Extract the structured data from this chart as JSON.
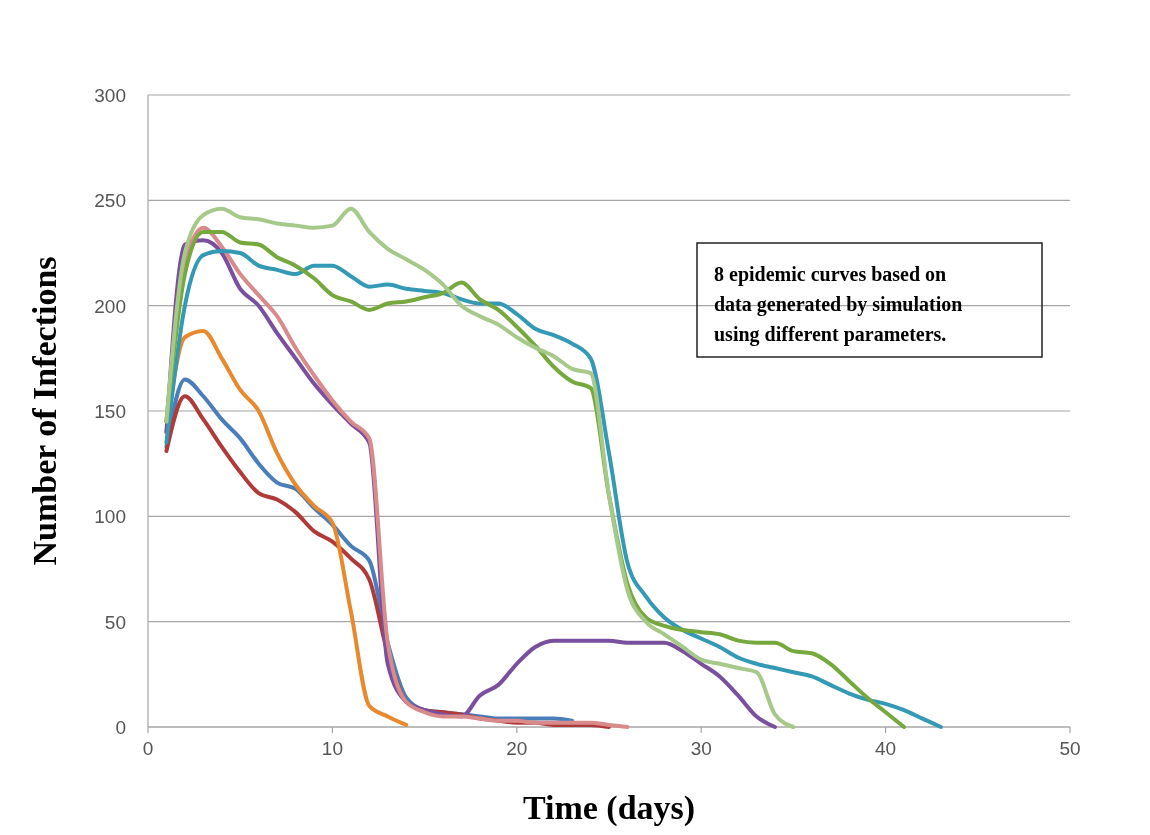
{
  "chart_data": {
    "type": "line",
    "xlabel": "Time (days)",
    "ylabel": "Number of Infections",
    "xlim": [
      0,
      50
    ],
    "xticks": [
      0,
      10,
      20,
      30,
      40,
      50
    ],
    "ylim": [
      0,
      300
    ],
    "yticks": [
      0,
      50,
      100,
      150,
      200,
      250,
      300
    ],
    "grid": "y",
    "marker": "none",
    "line_style": "solid",
    "annotations": [
      "8 epidemic curves based on data generated by simulation using different parameters."
    ],
    "series": [
      {
        "color": "#4a7ebb",
        "x": [
          1,
          2,
          3,
          4,
          5,
          6,
          7,
          8,
          9,
          10,
          11,
          12,
          13,
          14,
          15,
          16,
          17,
          18,
          19,
          20,
          21,
          22,
          23
        ],
        "values": [
          133,
          165,
          157,
          146,
          137,
          125,
          116,
          113,
          104,
          96,
          86,
          79,
          40,
          14,
          8,
          7,
          6,
          5,
          4,
          4,
          4,
          4,
          3
        ]
      },
      {
        "color": "#b03a3a",
        "x": [
          1,
          2,
          3,
          4,
          5,
          6,
          7,
          8,
          9,
          10,
          11,
          12,
          13,
          14,
          15,
          16,
          17,
          18,
          19,
          20,
          21,
          22,
          23,
          24,
          25
        ],
        "values": [
          131,
          157,
          146,
          133,
          121,
          111,
          108,
          102,
          93,
          88,
          80,
          70,
          35,
          12,
          8,
          7,
          6,
          4,
          3,
          2,
          2,
          1,
          1,
          1,
          0
        ]
      },
      {
        "color": "#e8892e",
        "x": [
          1,
          2,
          3,
          4,
          5,
          6,
          7,
          8,
          9,
          10,
          11,
          12,
          13,
          14
        ],
        "values": [
          140,
          185,
          188,
          175,
          160,
          150,
          130,
          115,
          105,
          97,
          55,
          10,
          5,
          1
        ]
      },
      {
        "color": "#7a4f9e",
        "x": [
          1,
          2,
          3,
          4,
          5,
          6,
          7,
          8,
          9,
          10,
          11,
          12,
          13,
          14,
          15,
          16,
          17,
          18,
          19,
          20,
          21,
          22,
          23,
          24,
          25,
          26,
          27,
          28,
          29,
          30,
          31,
          32,
          33,
          34
        ],
        "values": [
          140,
          229,
          231,
          225,
          208,
          200,
          187,
          175,
          163,
          153,
          144,
          135,
          30,
          12,
          8,
          6,
          5,
          15,
          20,
          30,
          38,
          41,
          41,
          41,
          41,
          40,
          40,
          40,
          36,
          30,
          24,
          15,
          5,
          0
        ]
      },
      {
        "color": "#d98b8b",
        "x": [
          1,
          2,
          3,
          4,
          5,
          6,
          7,
          8,
          9,
          10,
          11,
          12,
          13,
          14,
          15,
          16,
          17,
          18,
          19,
          20,
          21,
          22,
          23,
          24,
          25,
          26
        ],
        "values": [
          145,
          220,
          237,
          228,
          215,
          205,
          195,
          180,
          167,
          155,
          145,
          137,
          40,
          12,
          7,
          5,
          5,
          4,
          3,
          3,
          2,
          2,
          2,
          2,
          1,
          0
        ]
      },
      {
        "color": "#3399b5",
        "x": [
          1,
          2,
          3,
          4,
          5,
          6,
          7,
          8,
          9,
          10,
          11,
          12,
          13,
          14,
          15,
          16,
          17,
          18,
          19,
          20,
          21,
          22,
          23,
          24,
          25,
          26,
          27,
          28,
          29,
          30,
          31,
          32,
          33,
          34,
          35,
          36,
          37,
          38,
          39,
          40,
          41,
          42,
          43
        ],
        "values": [
          135,
          200,
          224,
          226,
          225,
          219,
          217,
          215,
          219,
          219,
          214,
          209,
          210,
          208,
          207,
          206,
          203,
          201,
          201,
          196,
          189,
          186,
          182,
          175,
          130,
          78,
          62,
          52,
          46,
          42,
          38,
          33,
          30,
          28,
          26,
          24,
          20,
          16,
          13,
          11,
          8,
          4,
          0
        ]
      },
      {
        "color": "#77a83e",
        "x": [
          1,
          2,
          3,
          4,
          5,
          6,
          7,
          8,
          9,
          10,
          11,
          12,
          13,
          14,
          15,
          16,
          17,
          18,
          19,
          20,
          21,
          22,
          23,
          24,
          25,
          26,
          27,
          28,
          29,
          30,
          31,
          32,
          33,
          34,
          35,
          36,
          37,
          38,
          39,
          40,
          41
        ],
        "values": [
          145,
          215,
          235,
          235,
          230,
          229,
          223,
          219,
          213,
          205,
          202,
          198,
          201,
          202,
          204,
          206,
          211,
          203,
          198,
          190,
          181,
          171,
          164,
          161,
          110,
          68,
          52,
          48,
          46,
          45,
          44,
          41,
          40,
          40,
          36,
          35,
          30,
          22,
          14,
          7,
          0
        ]
      },
      {
        "color": "#a6c98a",
        "x": [
          1,
          2,
          3,
          4,
          5,
          6,
          7,
          8,
          9,
          10,
          11,
          12,
          13,
          14,
          15,
          16,
          17,
          18,
          19,
          20,
          21,
          22,
          23,
          24,
          25,
          26,
          27,
          28,
          29,
          30,
          31,
          32,
          33,
          34,
          35
        ],
        "values": [
          145,
          225,
          243,
          246,
          242,
          241,
          239,
          238,
          237,
          238,
          246,
          235,
          227,
          222,
          217,
          210,
          200,
          195,
          191,
          185,
          180,
          176,
          170,
          168,
          110,
          65,
          50,
          44,
          38,
          32,
          30,
          28,
          26,
          6,
          0
        ]
      }
    ]
  }
}
